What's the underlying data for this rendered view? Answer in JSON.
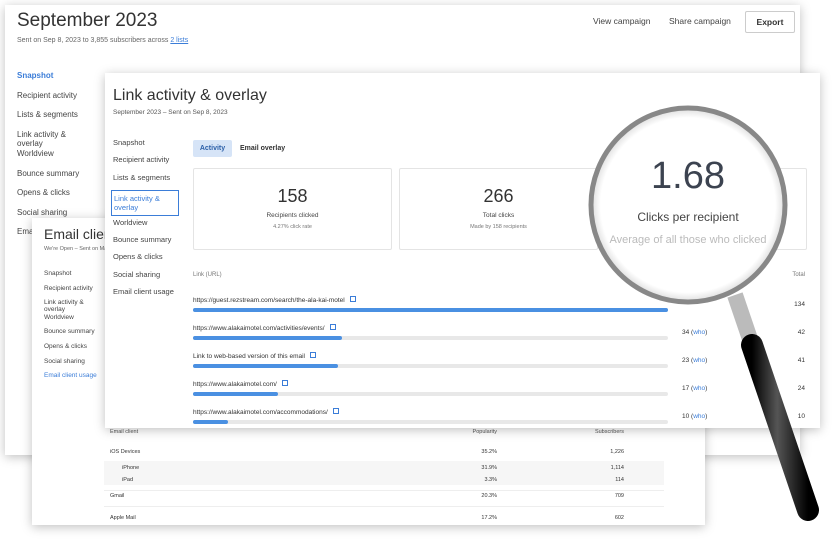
{
  "back": {
    "title": "September 2023",
    "subtitle": "Sent on Sep 8, 2023 to 3,855 subscribers across",
    "subtitle_link": "2 lists",
    "actions": [
      "View campaign",
      "Share campaign",
      "Export"
    ],
    "nav": [
      "Snapshot",
      "Recipient activity",
      "Lists & segments",
      "Link activity & overlay",
      "Worldview",
      "Bounce summary",
      "Opens & clicks",
      "Social sharing",
      "Email client usage"
    ]
  },
  "middle": {
    "title": "Email client usage",
    "subtitle": "We're Open – Sent on Ma",
    "nav": [
      "Snapshot",
      "Recipient activity",
      "Link activity & overlay",
      "Worldview",
      "Bounce summary",
      "Opens & clicks",
      "Social sharing",
      "Email client usage"
    ],
    "table": {
      "header": [
        "Email client",
        "Popularity",
        "Subscribers"
      ],
      "rows": [
        [
          "iOS Devices",
          "35.2%",
          "1,226"
        ],
        [
          "iPhone",
          "31.9%",
          "1,114"
        ],
        [
          "iPad",
          "3.3%",
          "114"
        ],
        [
          "Gmail",
          "20.3%",
          "709"
        ],
        [
          "Apple Mail",
          "17.2%",
          "602"
        ]
      ]
    }
  },
  "front": {
    "title": "Link activity & overlay",
    "subtitle": "September 2023 – Sent on Sep 8, 2023",
    "nav": [
      "Snapshot",
      "Recipient activity",
      "Lists & segments",
      "Link activity & overlay",
      "Worldview",
      "Bounce summary",
      "Opens & clicks",
      "Social sharing",
      "Email client usage"
    ],
    "tabs": [
      "Activity",
      "Email overlay"
    ],
    "stats": [
      {
        "value": "158",
        "label": "Recipients clicked",
        "note": "4.27% click rate"
      },
      {
        "value": "266",
        "label": "Total clicks",
        "note": "Made by 158 recipients"
      }
    ],
    "table_header": [
      "Link (URL)",
      "Total"
    ],
    "who_label": "who",
    "links": [
      {
        "url": "https://guest.rezstream.com/search/the-ala-kai-motel",
        "total": 134
      },
      {
        "url": "https://www.alakaimotel.com/activities/events/",
        "unique": 34,
        "total": 42
      },
      {
        "url": "Link to web-based version of this email",
        "unique": 23,
        "total": 41
      },
      {
        "url": "https://www.alakaimotel.com/",
        "unique": 17,
        "total": 24
      },
      {
        "url": "https://www.alakaimotel.com/accommodations/",
        "unique": 10,
        "total": 10
      }
    ]
  },
  "lens": {
    "value": "1.68",
    "label": "Clicks per recipient",
    "note": "Average of all those who clicked"
  }
}
